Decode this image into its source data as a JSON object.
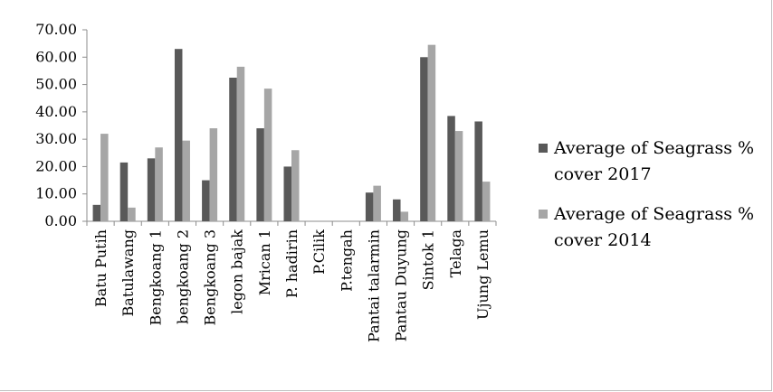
{
  "chart_data": {
    "type": "bar",
    "categories": [
      "Batu Putih",
      "Batulawang",
      "Bengkoang 1",
      "bengkoang 2",
      "Bengkoang 3",
      "legon bajak",
      "Mrican 1",
      "P. hadirin",
      "P.Cilik",
      "P.tengah",
      "Pantai talarmin",
      "Pantau Duyung",
      "Sintok 1",
      "Telaga",
      "Ujung Lemu"
    ],
    "series": [
      {
        "name": "Average of Seagrass % cover 2017",
        "legend_lines": [
          "Average of Seagrass %",
          "cover 2017"
        ],
        "color": "#595959",
        "values": [
          6,
          21.5,
          23,
          63,
          15,
          52.5,
          34,
          20,
          0,
          0,
          10.5,
          8,
          60,
          38.5,
          36.5
        ]
      },
      {
        "name": "Average of Seagrass % cover 2014",
        "legend_lines": [
          "Average of Seagrass %",
          "cover 2014"
        ],
        "color": "#a6a6a6",
        "values": [
          32,
          5,
          27,
          29.5,
          34,
          56.5,
          48.5,
          26,
          0,
          0,
          13,
          3.5,
          64.5,
          33,
          14.5
        ]
      }
    ],
    "ylim": [
      0,
      70
    ],
    "yticks": [
      "0.00",
      "10.00",
      "20.00",
      "30.00",
      "40.00",
      "50.00",
      "60.00",
      "70.00"
    ],
    "grid": false,
    "legend": "right"
  }
}
